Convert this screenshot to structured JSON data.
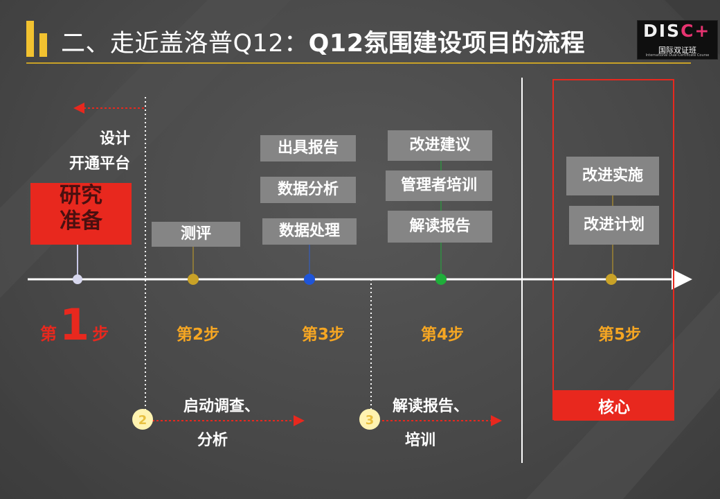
{
  "header": {
    "title_prefix": "二、走近盖洛普Q12：",
    "title_bold": "Q12氛围建设项目的流程"
  },
  "logo": {
    "word_left": "DIS",
    "word_accent": "C",
    "plus": "+",
    "cn": "国际双证班",
    "en": "International Dual-Certificate Course"
  },
  "phases": {
    "research": [
      "研究",
      "准备"
    ],
    "design": [
      "设计",
      "开通平台"
    ],
    "step2_box": "测评",
    "step3_boxes": [
      "出具报告",
      "数据分析",
      "数据处理"
    ],
    "step4_boxes": [
      "改进建议",
      "管理者培训",
      "解读报告"
    ],
    "step5_boxes": [
      "改进实施",
      "改进计划"
    ]
  },
  "steps": {
    "step1_prefix": "第",
    "step1_num": "1",
    "step1_suffix": "步",
    "step2": "第2步",
    "step3": "第3步",
    "step4": "第4步",
    "step5": "第5步"
  },
  "bottom": {
    "circle2": "2",
    "circle3": "3",
    "note2_line1": "启动调查、",
    "note2_line2": "分析",
    "note3_line1": "解读报告、",
    "note3_line2": "培训",
    "core": "核心"
  },
  "colors": {
    "accent_yellow": "#f2c230",
    "accent_red": "#e8281e",
    "step_orange": "#f5a623",
    "box_gray": "#858585"
  }
}
